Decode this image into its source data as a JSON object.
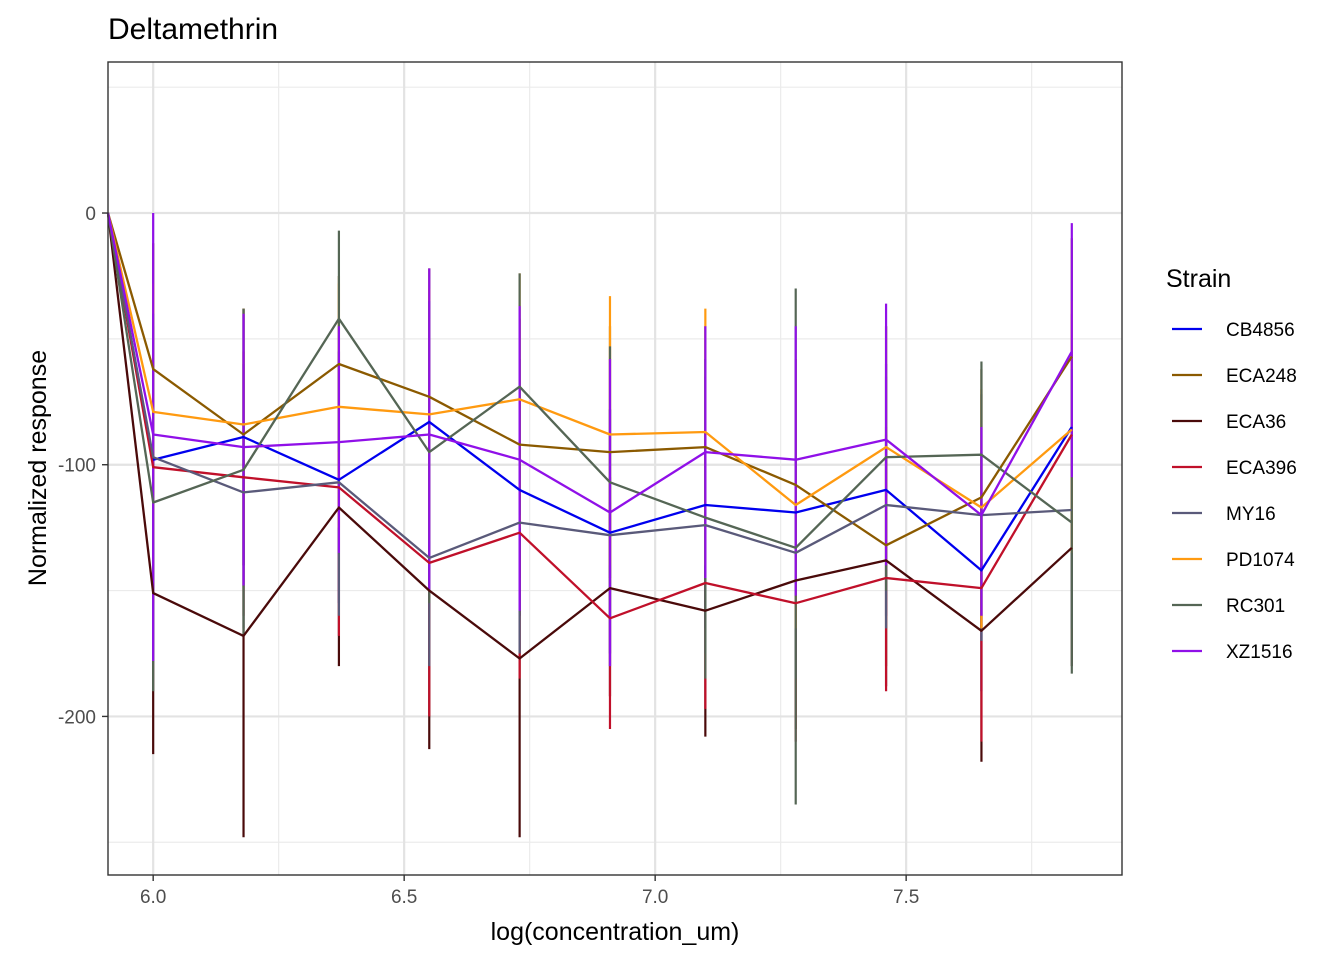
{
  "chart_data": {
    "type": "line",
    "title": "Deltamethrin",
    "xlabel": "log(concentration_um)",
    "ylabel": "Normalized response",
    "xlim": [
      5.91,
      7.93
    ],
    "ylim": [
      -263,
      60
    ],
    "x_ticks": [
      6.0,
      6.5,
      7.0,
      7.5
    ],
    "x_tick_labels": [
      "6.0",
      "6.5",
      "7.0",
      "7.5"
    ],
    "y_ticks": [
      0,
      -100,
      -200
    ],
    "y_tick_labels": [
      "0",
      "-100",
      "-200"
    ],
    "grid": true,
    "legend": {
      "title": "Strain",
      "position": "right"
    },
    "x": [
      5.91,
      6.0,
      6.18,
      6.37,
      6.55,
      6.73,
      6.91,
      7.1,
      7.28,
      7.46,
      7.65,
      7.83
    ],
    "series": [
      {
        "name": "CB4856",
        "color": "#0000ee",
        "values": [
          0,
          -98,
          -89,
          -106,
          -83,
          -110,
          -127,
          -116,
          -119,
          -110,
          -142,
          -85
        ],
        "err_lo": [
          0,
          -150,
          -140,
          -155,
          -135,
          -160,
          -175,
          -165,
          -170,
          -160,
          -190,
          -130
        ],
        "err_hi": [
          0,
          -45,
          -38,
          -55,
          -30,
          -58,
          -78,
          -65,
          -68,
          -60,
          -95,
          -40
        ]
      },
      {
        "name": "ECA248",
        "color": "#8b5a00",
        "values": [
          0,
          -62,
          -88,
          -60,
          -73,
          -92,
          -95,
          -93,
          -108,
          -132,
          -113,
          -57
        ],
        "err_lo": [
          0,
          -115,
          -140,
          -110,
          -125,
          -145,
          -145,
          -145,
          -158,
          -180,
          -165,
          -108
        ],
        "err_hi": [
          0,
          -12,
          -38,
          -25,
          -22,
          -42,
          -45,
          -45,
          -58,
          -85,
          -62,
          -10
        ]
      },
      {
        "name": "ECA36",
        "color": "#4a0a0a",
        "values": [
          0,
          -151,
          -168,
          -117,
          -150,
          -177,
          -149,
          -158,
          -146,
          -138,
          -166,
          -133
        ],
        "err_lo": [
          0,
          -215,
          -248,
          -180,
          -213,
          -248,
          -192,
          -208,
          -205,
          -188,
          -218,
          -180
        ],
        "err_hi": [
          0,
          -95,
          -98,
          -58,
          -95,
          -110,
          -105,
          -110,
          -90,
          -88,
          -115,
          -85
        ]
      },
      {
        "name": "ECA396",
        "color": "#c0102a",
        "values": [
          0,
          -101,
          -105,
          -109,
          -139,
          -127,
          -161,
          -147,
          -155,
          -145,
          -149,
          -88
        ],
        "err_lo": [
          0,
          -155,
          -160,
          -168,
          -200,
          -185,
          -205,
          -197,
          -210,
          -190,
          -210,
          -135
        ],
        "err_hi": [
          0,
          -48,
          -55,
          -55,
          -88,
          -75,
          -115,
          -95,
          -100,
          -98,
          -98,
          -40
        ]
      },
      {
        "name": "MY16",
        "color": "#5a5a7a",
        "values": [
          0,
          -97,
          -111,
          -107,
          -137,
          -123,
          -128,
          -124,
          -135,
          -116,
          -120,
          -118
        ],
        "err_lo": [
          0,
          -152,
          -165,
          -160,
          -180,
          -175,
          -180,
          -175,
          -185,
          -165,
          -170,
          -165
        ],
        "err_hi": [
          0,
          -45,
          -60,
          -55,
          -90,
          -72,
          -78,
          -75,
          -85,
          -65,
          -72,
          -70
        ]
      },
      {
        "name": "PD1074",
        "color": "#ff9a10",
        "values": [
          0,
          -79,
          -84,
          -77,
          -80,
          -74,
          -88,
          -87,
          -116,
          -93,
          -117,
          -86
        ],
        "err_lo": [
          0,
          -130,
          -130,
          -125,
          -130,
          -125,
          -140,
          -140,
          -165,
          -140,
          -165,
          -135
        ],
        "err_hi": [
          0,
          -28,
          -38,
          -28,
          -30,
          -24,
          -33,
          -38,
          -68,
          -45,
          -70,
          -35
        ]
      },
      {
        "name": "RC301",
        "color": "#556655",
        "values": [
          0,
          -115,
          -102,
          -42,
          -95,
          -69,
          -107,
          -121,
          -133,
          -97,
          -96,
          -123
        ],
        "err_lo": [
          0,
          -190,
          -168,
          -95,
          -155,
          -120,
          -160,
          -185,
          -235,
          -150,
          -150,
          -183
        ],
        "err_hi": [
          0,
          -40,
          -38,
          -7,
          -35,
          -24,
          -53,
          -58,
          -30,
          -45,
          -59,
          -62
        ]
      },
      {
        "name": "XZ1516",
        "color": "#9010e8",
        "values": [
          0,
          -88,
          -93,
          -91,
          -88,
          -98,
          -119,
          -95,
          -98,
          -90,
          -120,
          -55
        ],
        "err_lo": [
          0,
          -178,
          -148,
          -135,
          -150,
          -158,
          -180,
          -145,
          -152,
          -140,
          -160,
          -105
        ],
        "err_hi": [
          0,
          0,
          -40,
          -45,
          -22,
          -37,
          -58,
          -45,
          -45,
          -36,
          -85,
          -4
        ]
      }
    ]
  }
}
